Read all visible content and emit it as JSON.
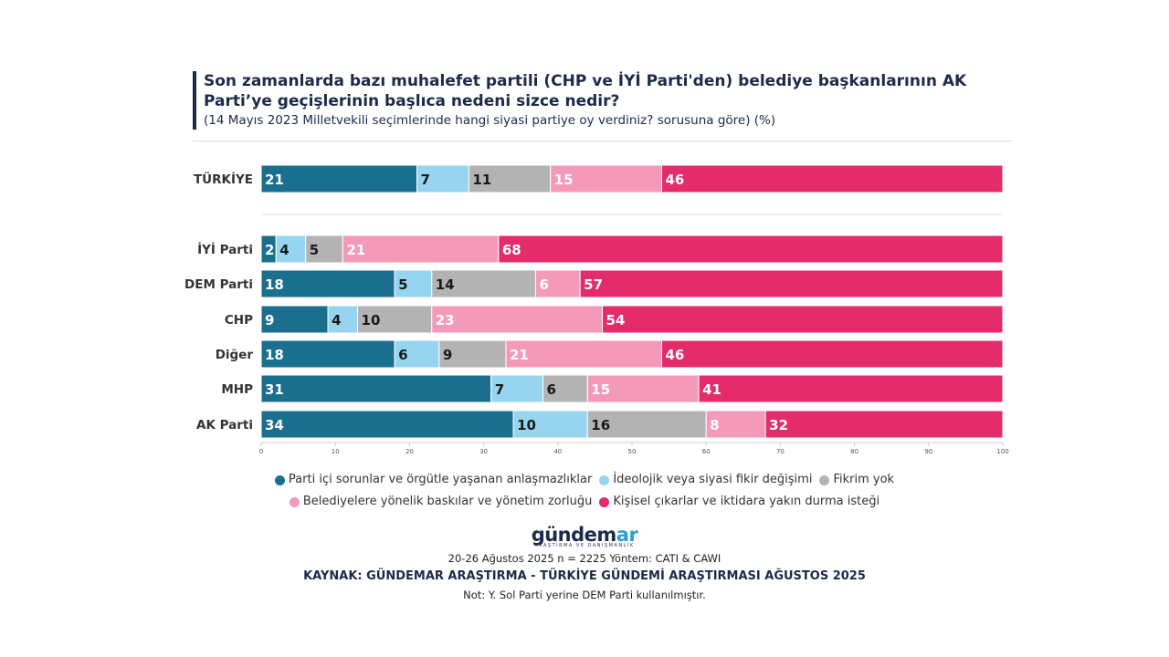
{
  "header": {
    "title": "Son zamanlarda bazı muhalefet partili (CHP ve İYİ Parti'den) belediye başkanlarının AK Parti’ye geçişlerinin başlıca nedeni sizce nedir?",
    "subtitle": "(14 Mayıs 2023 Milletvekili seçimlerinde hangi siyasi partiye oy verdiniz? sorusuna göre) (%)"
  },
  "chart_data": {
    "type": "bar",
    "orientation": "horizontal",
    "stacked": true,
    "categories": [
      "TÜRKİYE",
      "İYİ Parti",
      "DEM Parti",
      "CHP",
      "Diğer",
      "MHP",
      "AK Parti"
    ],
    "series": [
      {
        "name": "Parti içi sorunlar ve örgütle yaşanan anlaşmazlıklar",
        "color": "#1b6f8e",
        "values": [
          21,
          2,
          18,
          9,
          18,
          31,
          34
        ]
      },
      {
        "name": "İdeolojik veya siyasi fikir değişimi",
        "color": "#97d4ef",
        "values": [
          7,
          4,
          5,
          4,
          6,
          7,
          10
        ]
      },
      {
        "name": "Fikrim yok",
        "color": "#b3b3b3",
        "values": [
          11,
          5,
          14,
          10,
          9,
          6,
          16
        ]
      },
      {
        "name": "Belediyelere yönelik baskılar ve yönetim zorluğu",
        "color": "#f49ab8",
        "values": [
          15,
          21,
          6,
          23,
          21,
          15,
          8
        ]
      },
      {
        "name": "Kişisel çıkarlar ve iktidara yakın durma isteği",
        "color": "#e32c69",
        "values": [
          46,
          68,
          57,
          54,
          46,
          41,
          32
        ]
      }
    ],
    "xlim": [
      0,
      100
    ],
    "xticks": [
      0,
      10,
      20,
      30,
      40,
      50,
      60,
      70,
      80,
      90,
      100
    ],
    "legend_position": "bottom"
  },
  "logo": {
    "main": "gündem",
    "accent": "ar",
    "tagline": "ARAŞTIRMA VE DANIŞMANLIK"
  },
  "footer": {
    "meta": "20-26 Ağustos 2025 n = 2225 Yöntem: CATI & CAWI",
    "source": "KAYNAK: GÜNDEMAR ARAŞTIRMA - TÜRKİYE GÜNDEMİ ARAŞTIRMASI AĞUSTOS 2025",
    "note": "Not: Y. Sol Parti yerine DEM Parti kullanılmıştır."
  }
}
